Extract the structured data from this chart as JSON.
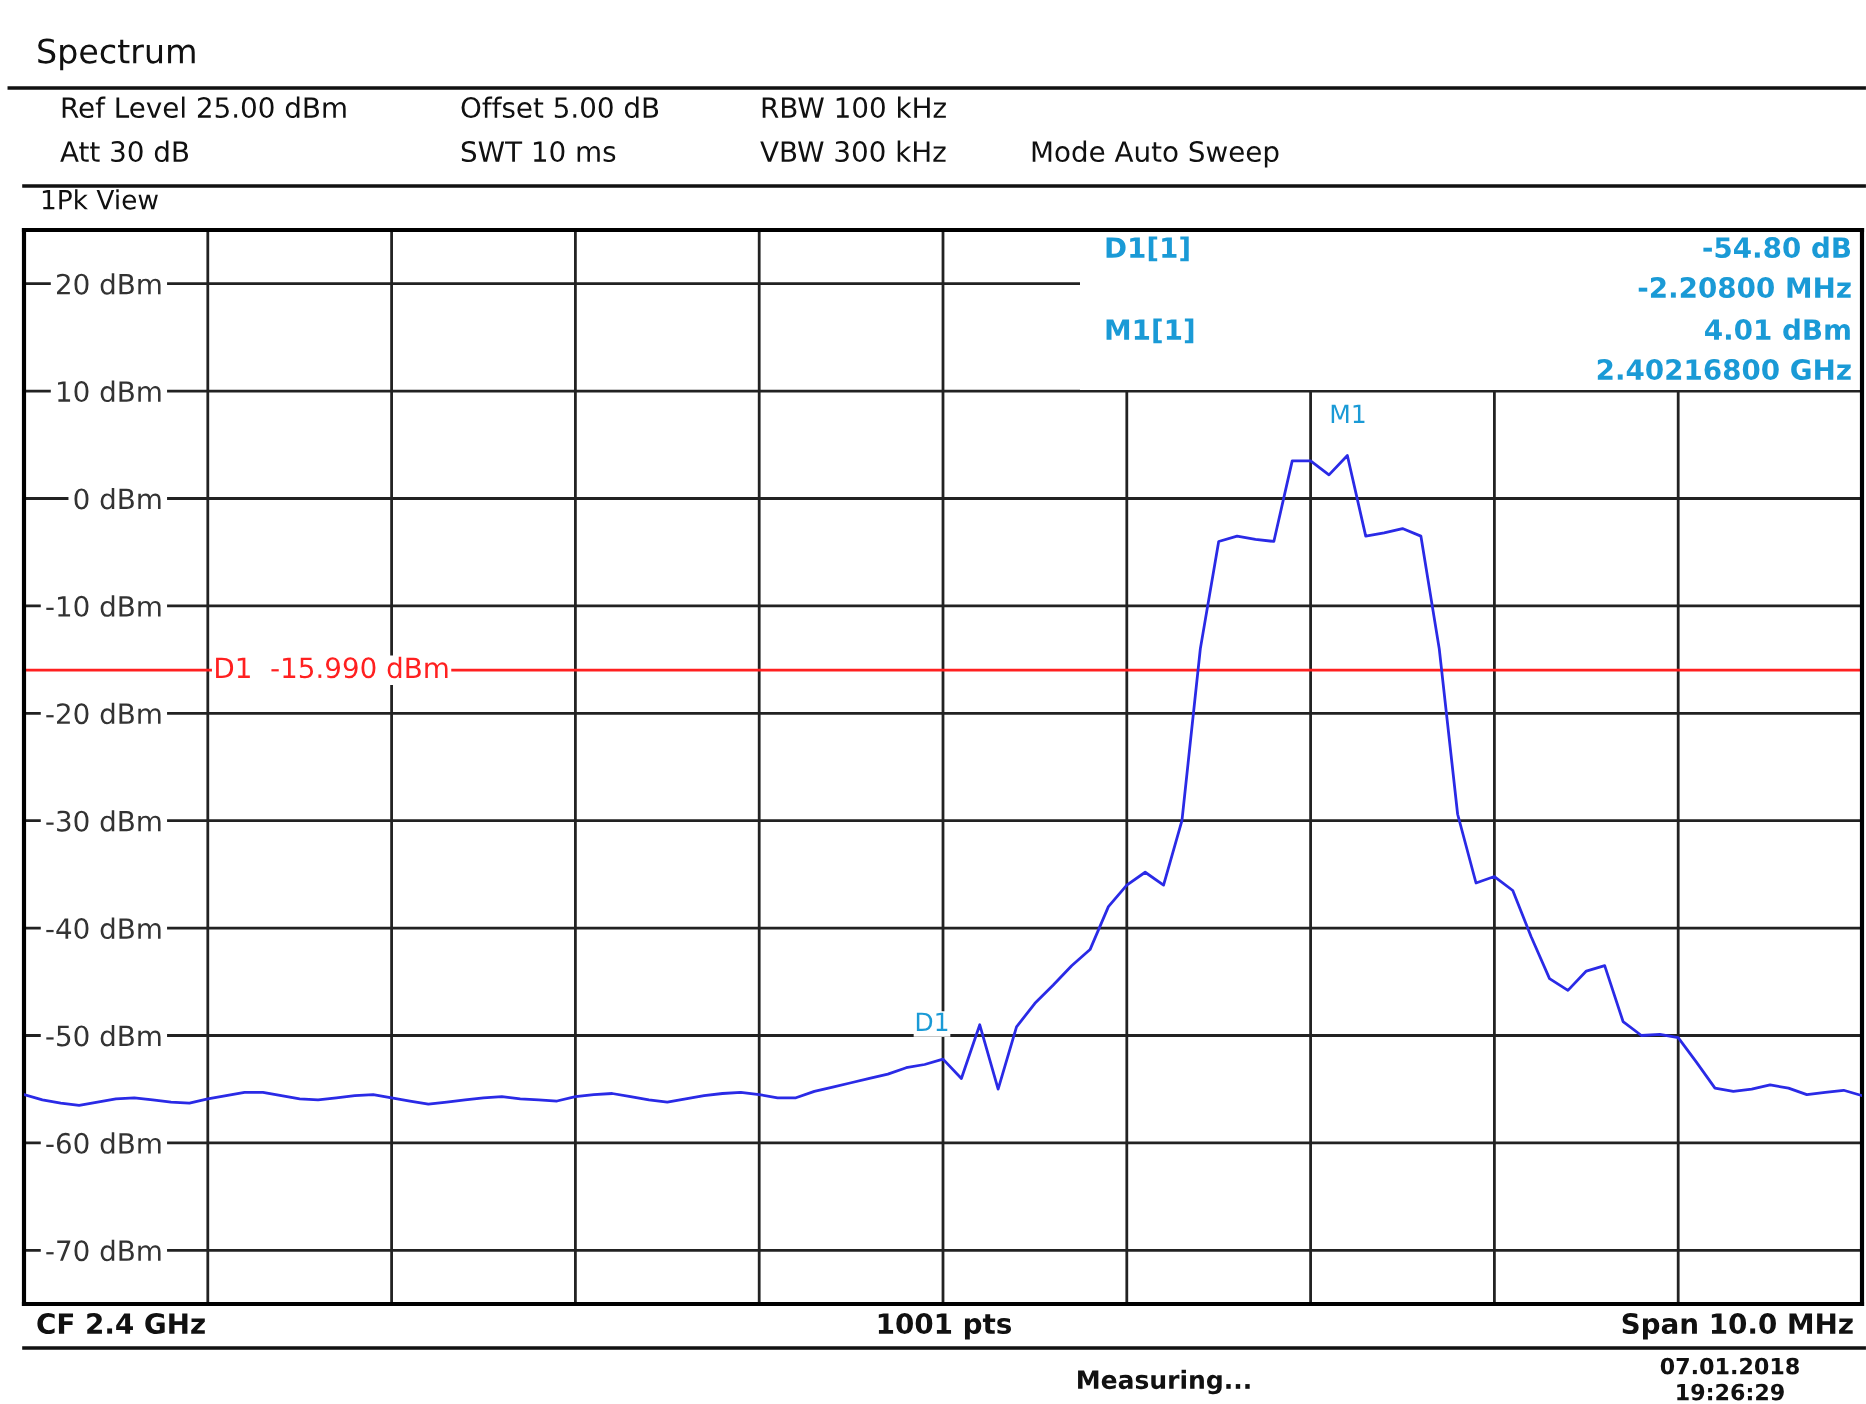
{
  "chart_data": {
    "type": "line",
    "title": "Spectrum",
    "categories": [
      null,
      null,
      null,
      null,
      null,
      null,
      null,
      null,
      null,
      null,
      null,
      null,
      null,
      null,
      null,
      null,
      null,
      null,
      null,
      null,
      null,
      null,
      null,
      null,
      null,
      null,
      null,
      null,
      null,
      null,
      null,
      null,
      null,
      null,
      null,
      null,
      null,
      null,
      null,
      null,
      null,
      null,
      null,
      null,
      null,
      null,
      null,
      null,
      null,
      null,
      null,
      null,
      null,
      null,
      null,
      null,
      null,
      null,
      null,
      null,
      null,
      null,
      null,
      null,
      null,
      null,
      null,
      null,
      null,
      null,
      null,
      null,
      null,
      null,
      null,
      null,
      null,
      null,
      null,
      null,
      null,
      null,
      null,
      null,
      null,
      null,
      null,
      null,
      null,
      null,
      null,
      null,
      null,
      null,
      null,
      null,
      null,
      null,
      null,
      null,
      null
    ],
    "series": [
      {
        "color": "#2a2ae6",
        "values": [
          -55.5,
          -56.0,
          -56.3,
          -56.5,
          -56.2,
          -55.9,
          -55.8,
          -56.0,
          -56.2,
          -56.3,
          -55.9,
          -55.6,
          -55.3,
          -55.3,
          -55.6,
          -55.9,
          -56.0,
          -55.8,
          -55.6,
          -55.5,
          -55.8,
          -56.1,
          -56.4,
          -56.2,
          -56.0,
          -55.8,
          -55.7,
          -55.9,
          -56.0,
          -56.1,
          -55.7,
          -55.5,
          -55.4,
          -55.7,
          -56.0,
          -56.2,
          -55.9,
          -55.6,
          -55.4,
          -55.3,
          -55.5,
          -55.8,
          -55.8,
          -55.2,
          -54.8,
          -54.4,
          -54.0,
          -53.6,
          -53.0,
          -52.7,
          -52.2,
          -54.0,
          -49.0,
          -55.0,
          -49.2,
          -47.0,
          -45.3,
          -43.5,
          -42.0,
          -38.0,
          -36.0,
          -34.8,
          -36.0,
          -30.0,
          -14.0,
          -4.0,
          -3.5,
          -3.8,
          -4.0,
          3.5,
          3.5,
          2.2,
          4.0,
          -3.5,
          -3.2,
          -2.8,
          -3.5,
          -14.0,
          -29.4,
          -35.8,
          -35.2,
          -36.5,
          -40.8,
          -44.7,
          -45.8,
          -44.0,
          -43.5,
          -48.7,
          -50.0,
          -49.9,
          -50.2,
          -52.5,
          -54.9,
          -55.2,
          -55.0,
          -54.6,
          -54.9,
          -55.5,
          -55.3,
          -55.1,
          -55.6
        ]
      }
    ],
    "ylim": [
      -75,
      25
    ],
    "yticks": [
      {
        "value": 20,
        "label": "20 dBm"
      },
      {
        "value": 10,
        "label": "10 dBm"
      },
      {
        "value": 0,
        "label": "0 dBm"
      },
      {
        "value": -10,
        "label": "-10 dBm"
      },
      {
        "value": -20,
        "label": "-20 dBm"
      },
      {
        "value": -30,
        "label": "-30 dBm"
      },
      {
        "value": -40,
        "label": "-40 dBm"
      },
      {
        "value": -50,
        "label": "-50 dBm"
      },
      {
        "value": -60,
        "label": "-60 dBm"
      },
      {
        "value": -70,
        "label": "-70 dBm"
      }
    ],
    "grid": true,
    "ref_lines": [
      {
        "axis": "y",
        "value": -15.99,
        "label": "D1  -15.990 dBm",
        "color": "#ff2020"
      }
    ],
    "annotations": [
      "Ref Level 25.00 dBm",
      "Offset 5.00 dB",
      "RBW 100 kHz",
      "Att 30 dB",
      "SWT 10 ms",
      "VBW 300 kHz",
      "Mode Auto Sweep",
      "1Pk View",
      "D1[1]",
      "-54.80 dB",
      "-2.20800 MHz",
      "M1[1]",
      "4.01 dBm",
      "2.40216800 GHz",
      "CF 2.4 GHz",
      "1001 pts",
      "Span 10.0 MHz",
      "Measuring...",
      "07.01.2018",
      "19:26:29",
      "M1",
      "D1"
    ]
  }
}
